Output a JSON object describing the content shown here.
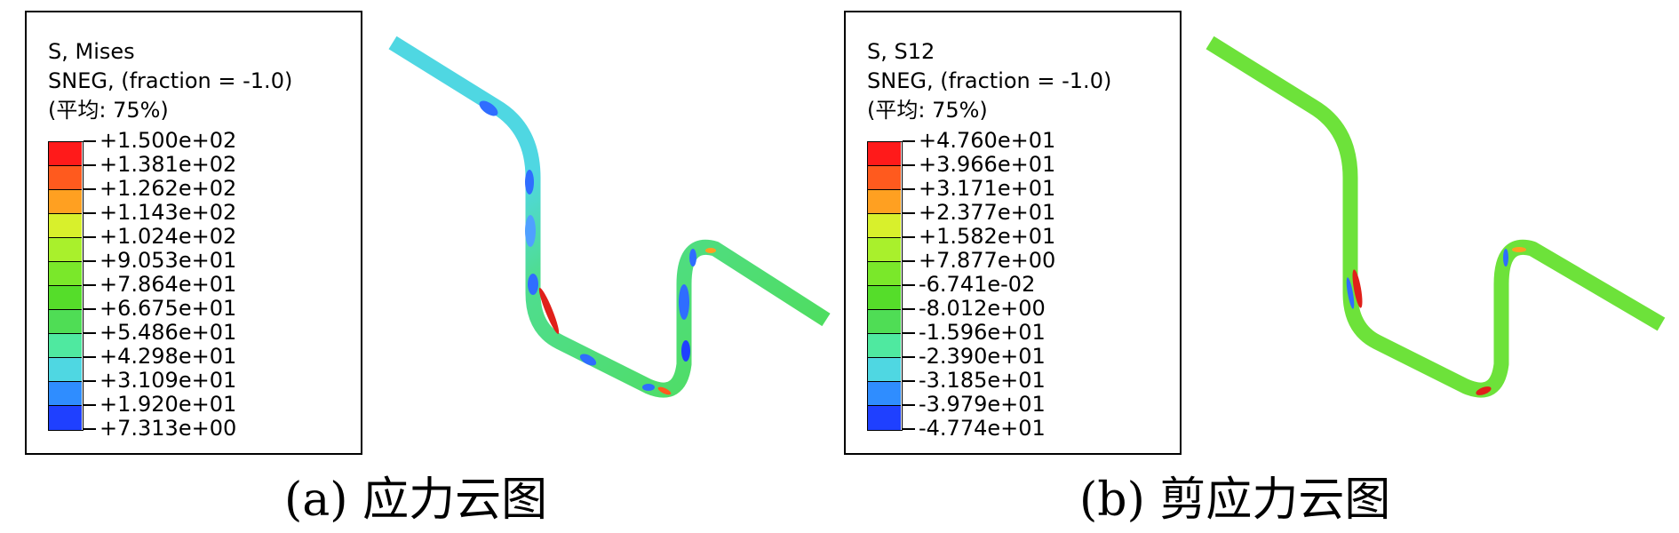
{
  "panels": [
    {
      "legend": {
        "line1": "S, Mises",
        "line2": "SNEG, (fraction = -1.0)",
        "line3": "(平均: 75%)",
        "ticks": [
          "+1.500e+02",
          "+1.381e+02",
          "+1.262e+02",
          "+1.143e+02",
          "+1.024e+02",
          "+9.053e+01",
          "+7.864e+01",
          "+6.675e+01",
          "+5.486e+01",
          "+4.298e+01",
          "+3.109e+01",
          "+1.920e+01",
          "+7.313e+00"
        ],
        "colors": [
          "#ff1a1a",
          "#ff5a1e",
          "#ffa021",
          "#d8f02c",
          "#a9f02c",
          "#7ae82a",
          "#55dd2a",
          "#4fdd55",
          "#4fe9a0",
          "#4fd7e2",
          "#2f8dff",
          "#1f40ff"
        ]
      },
      "caption": "(a) 应力云图"
    },
    {
      "legend": {
        "line1": "S, S12",
        "line2": "SNEG, (fraction = -1.0)",
        "line3": "(平均: 75%)",
        "ticks": [
          "+4.760e+01",
          "+3.966e+01",
          "+3.171e+01",
          "+2.377e+01",
          "+1.582e+01",
          "+7.877e+00",
          "-6.741e-02",
          "-8.012e+00",
          "-1.596e+01",
          "-2.390e+01",
          "-3.185e+01",
          "-3.979e+01",
          "-4.774e+01"
        ],
        "colors": [
          "#ff1a1a",
          "#ff5a1e",
          "#ffa021",
          "#d8f02c",
          "#a9f02c",
          "#7ae82a",
          "#55dd2a",
          "#4fdd55",
          "#4fe9a0",
          "#4fd7e2",
          "#2f8dff",
          "#1f40ff"
        ]
      },
      "caption": "(b) 剪应力云图"
    }
  ]
}
